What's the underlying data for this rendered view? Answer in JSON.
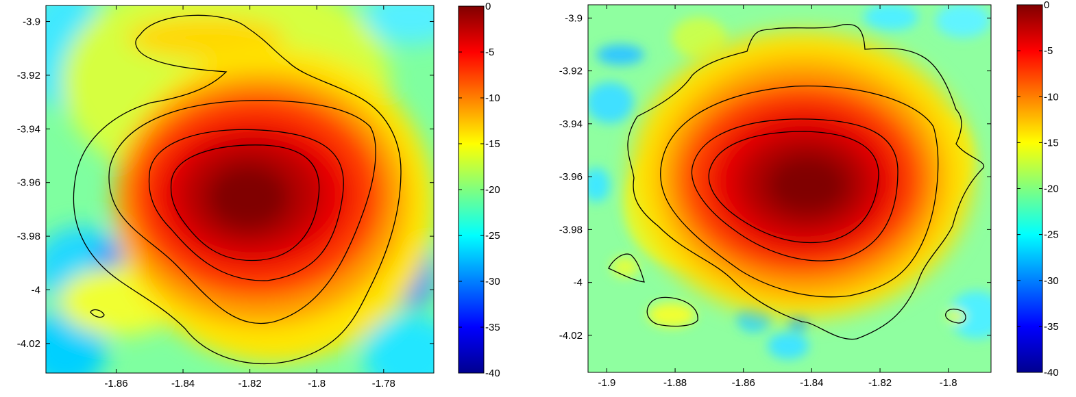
{
  "chart_data": [
    {
      "type": "heatmap",
      "title": "",
      "xlabel": "",
      "ylabel": "",
      "xlim": [
        -1.881,
        -1.765
      ],
      "ylim": [
        -4.031,
        -3.894
      ],
      "x_ticks": [
        -1.86,
        -1.84,
        -1.82,
        -1.8,
        -1.78
      ],
      "x_tick_labels": [
        "-1.86",
        "-1.84",
        "-1.82",
        "-1.8",
        "-1.78"
      ],
      "y_ticks": [
        -3.9,
        -3.92,
        -3.94,
        -3.96,
        -3.98,
        -4.0,
        -4.02
      ],
      "y_tick_labels": [
        "-3.9",
        "-3.92",
        "-3.94",
        "-3.96",
        "-3.98",
        "-4",
        "-4.02"
      ],
      "colorbar": {
        "range": [
          -40,
          0
        ],
        "ticks": [
          0,
          -5,
          -10,
          -15,
          -20,
          -25,
          -30,
          -35,
          -40
        ],
        "tick_labels": [
          "0",
          "-5",
          "-10",
          "-15",
          "-20",
          "-25",
          "-30",
          "-35",
          "-40"
        ],
        "colormap": "jet"
      },
      "peak": {
        "x": -1.819,
        "y": -3.966,
        "value": 0
      },
      "contours": [
        {
          "level": -15,
          "shape": "outer lobe with northwest tail"
        },
        {
          "level": -10
        },
        {
          "level": -5
        },
        {
          "level": -3
        },
        {
          "level": -15,
          "shape": "small island",
          "x": -1.861,
          "y": -4.008
        }
      ]
    },
    {
      "type": "heatmap",
      "title": "",
      "xlabel": "",
      "ylabel": "",
      "xlim": [
        -1.9055,
        -1.7875
      ],
      "ylim": [
        -4.034,
        -3.895
      ],
      "x_ticks": [
        -1.9,
        -1.88,
        -1.86,
        -1.84,
        -1.82,
        -1.8
      ],
      "x_tick_labels": [
        "-1.9",
        "-1.88",
        "-1.86",
        "-1.84",
        "-1.82",
        "-1.8"
      ],
      "y_ticks": [
        -3.9,
        -3.92,
        -3.94,
        -3.96,
        -3.98,
        -4.0,
        -4.02
      ],
      "y_tick_labels": [
        "-3.9",
        "-3.92",
        "-3.94",
        "-3.96",
        "-3.98",
        "-4",
        "-4.02"
      ],
      "colorbar": {
        "range": [
          -40,
          0
        ],
        "ticks": [
          0,
          -5,
          -10,
          -15,
          -20,
          -25,
          -30,
          -35,
          -40
        ],
        "tick_labels": [
          "0",
          "-5",
          "-10",
          "-15",
          "-20",
          "-25",
          "-30",
          "-35",
          "-40"
        ],
        "colormap": "jet"
      },
      "peak": {
        "x": -1.84,
        "y": -3.962,
        "value": 0
      },
      "contours": [
        {
          "level": -15,
          "shape": "outer irregular boundary"
        },
        {
          "level": -10
        },
        {
          "level": -5
        },
        {
          "level": -3
        },
        {
          "level": -15,
          "shape": "small island",
          "x": -1.893,
          "y": -3.993
        },
        {
          "level": -15,
          "shape": "small island",
          "x": -1.882,
          "y": -4.012
        },
        {
          "level": -15,
          "shape": "small island",
          "x": -1.796,
          "y": -4.011
        }
      ]
    }
  ]
}
